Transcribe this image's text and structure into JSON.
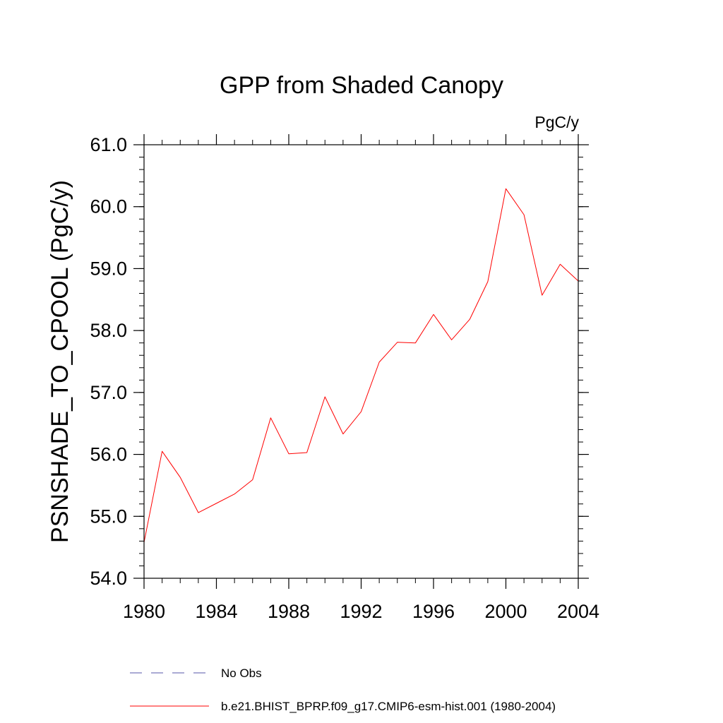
{
  "chart_data": {
    "type": "line",
    "title": "GPP from Shaded Canopy",
    "units_label": "PgC/y",
    "xlabel": "",
    "ylabel": "PSNSHADE_TO_CPOOL  (PgC/y)",
    "xlim": [
      1980,
      2004
    ],
    "ylim": [
      54.0,
      61.0
    ],
    "x_ticks": [
      1980,
      1984,
      1988,
      1992,
      1996,
      2000,
      2004
    ],
    "y_ticks": [
      "54.0",
      "55.0",
      "56.0",
      "57.0",
      "58.0",
      "59.0",
      "60.0",
      "61.0"
    ],
    "x_minor_step": 1,
    "y_minor_step": 0.2,
    "grid": false,
    "series": [
      {
        "name": "b.e21.BHIST_BPRP.f09_g17.CMIP6-esm-hist.001 (1980-2004)",
        "color": "#ff0000",
        "dash": "solid",
        "x": [
          1980,
          1981,
          1982,
          1983,
          1984,
          1985,
          1986,
          1987,
          1988,
          1989,
          1990,
          1991,
          1992,
          1993,
          1994,
          1995,
          1996,
          1997,
          1998,
          1999,
          2000,
          2001,
          2002,
          2003,
          2004
        ],
        "values": [
          54.58,
          56.05,
          55.63,
          55.06,
          55.21,
          55.36,
          55.59,
          56.59,
          56.01,
          56.03,
          56.93,
          56.33,
          56.69,
          57.49,
          57.81,
          57.8,
          58.26,
          57.85,
          58.18,
          58.79,
          60.29,
          59.87,
          58.57,
          59.07,
          58.8
        ]
      }
    ],
    "legend": [
      {
        "label": "No Obs",
        "color": "#5555aa",
        "dash": "dashed"
      },
      {
        "label": "b.e21.BHIST_BPRP.f09_g17.CMIP6-esm-hist.001 (1980-2004)",
        "color": "#ff0000",
        "dash": "solid"
      }
    ]
  }
}
